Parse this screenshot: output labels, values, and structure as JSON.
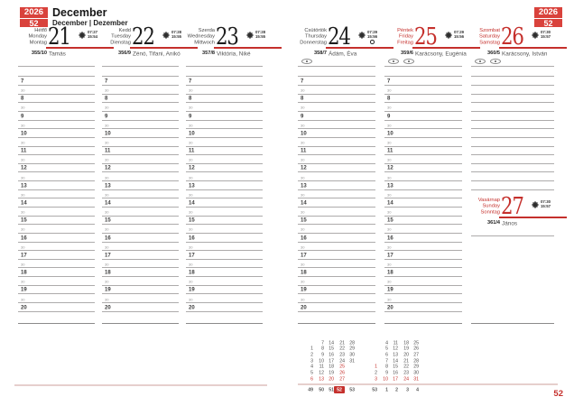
{
  "meta": {
    "year": "2026",
    "week": "52",
    "page_number": "52"
  },
  "header": {
    "month": "December",
    "subtitle": "December | Dezember"
  },
  "days": [
    {
      "date": "21",
      "dow": [
        "Hétfő",
        "Monday",
        "Montag"
      ],
      "ordinal": "355/10",
      "names": "Tamás",
      "sunrise": "07:27",
      "sunset": "15:54",
      "red": false,
      "badges": 0,
      "moon": false
    },
    {
      "date": "22",
      "dow": [
        "Kedd",
        "Tuesday",
        "Dienstag"
      ],
      "ordinal": "356/9",
      "names": "Zénó, Tifani, Anikó",
      "sunrise": "07:28",
      "sunset": "15:55",
      "red": false,
      "badges": 0,
      "moon": false
    },
    {
      "date": "23",
      "dow": [
        "Szerda",
        "Wednesday",
        "Mittwoch"
      ],
      "ordinal": "357/8",
      "names": "Viktória, Niké",
      "sunrise": "07:28",
      "sunset": "15:55",
      "red": false,
      "badges": 0,
      "moon": false
    },
    {
      "date": "24",
      "dow": [
        "Csütörtök",
        "Thursday",
        "Donnerstag"
      ],
      "ordinal": "358/7",
      "names": "Ádám, Éva",
      "sunrise": "07:29",
      "sunset": "15:56",
      "red": false,
      "badges": 1,
      "moon": true
    },
    {
      "date": "25",
      "dow": [
        "Péntek",
        "Friday",
        "Freitag"
      ],
      "ordinal": "359/6",
      "names": "Karácsony, Eugénia",
      "sunrise": "07:29",
      "sunset": "15:56",
      "red": true,
      "badges": 2,
      "moon": false
    },
    {
      "date": "26",
      "dow": [
        "Szombat",
        "Saturday",
        "Samstag"
      ],
      "ordinal": "360/5",
      "names": "Karácsony, István",
      "sunrise": "07:30",
      "sunset": "15:57",
      "red": true,
      "badges": 2,
      "moon": false
    },
    {
      "date": "27",
      "dow": [
        "Vasárnap",
        "Sunday",
        "Sonntag"
      ],
      "ordinal": "361/4",
      "names": "János",
      "sunrise": "07:30",
      "sunset": "15:57",
      "red": true,
      "badges": 0,
      "moon": false
    }
  ],
  "hours": [
    "7",
    "8",
    "9",
    "10",
    "11",
    "12",
    "13",
    "14",
    "15",
    "16",
    "17",
    "18",
    "19",
    "20"
  ],
  "half_hour_label": "30",
  "mini_calendar": {
    "months": [
      {
        "name": "december",
        "rows": [
          [
            "",
            "7",
            "14",
            "21",
            "28"
          ],
          [
            "1",
            "8",
            "15",
            "22",
            "29"
          ],
          [
            "2",
            "9",
            "16",
            "23",
            "30"
          ],
          [
            "3",
            "10",
            "17",
            "24",
            "31"
          ],
          [
            "4",
            "11",
            "18",
            "25",
            ""
          ],
          [
            "5",
            "12",
            "19",
            "26",
            ""
          ],
          [
            "6",
            "13",
            "20",
            "27",
            ""
          ]
        ],
        "red_cells": [
          [
            4,
            3
          ],
          [
            5,
            3
          ],
          [
            6,
            0
          ],
          [
            6,
            1
          ],
          [
            6,
            2
          ],
          [
            6,
            3
          ]
        ],
        "week_numbers": [
          "49",
          "50",
          "51",
          "52",
          "53"
        ],
        "highlight_week": "52"
      },
      {
        "name": "january",
        "rows": [
          [
            "",
            "4",
            "11",
            "18",
            "25"
          ],
          [
            "",
            "5",
            "12",
            "19",
            "26"
          ],
          [
            "",
            "6",
            "13",
            "20",
            "27"
          ],
          [
            "",
            "7",
            "14",
            "21",
            "28"
          ],
          [
            "1",
            "8",
            "15",
            "22",
            "29"
          ],
          [
            "2",
            "9",
            "16",
            "23",
            "30"
          ],
          [
            "3",
            "10",
            "17",
            "24",
            "31"
          ]
        ],
        "red_cells": [
          [
            4,
            0
          ],
          [
            6,
            0
          ],
          [
            6,
            1
          ],
          [
            6,
            2
          ],
          [
            6,
            3
          ],
          [
            6,
            4
          ]
        ],
        "week_numbers": [
          "53",
          "1",
          "2",
          "3",
          "4"
        ],
        "highlight_week": null
      }
    ]
  },
  "icons": {
    "sun": "sunrise-sunset-icon",
    "moon": "full-moon-icon",
    "badge": "holiday-marker-icon"
  },
  "colors": {
    "accent_red": "#c5302c",
    "box_red": "#d9423c",
    "pink_divider": "#e6cfcd",
    "rule_grey": "#adabab"
  }
}
